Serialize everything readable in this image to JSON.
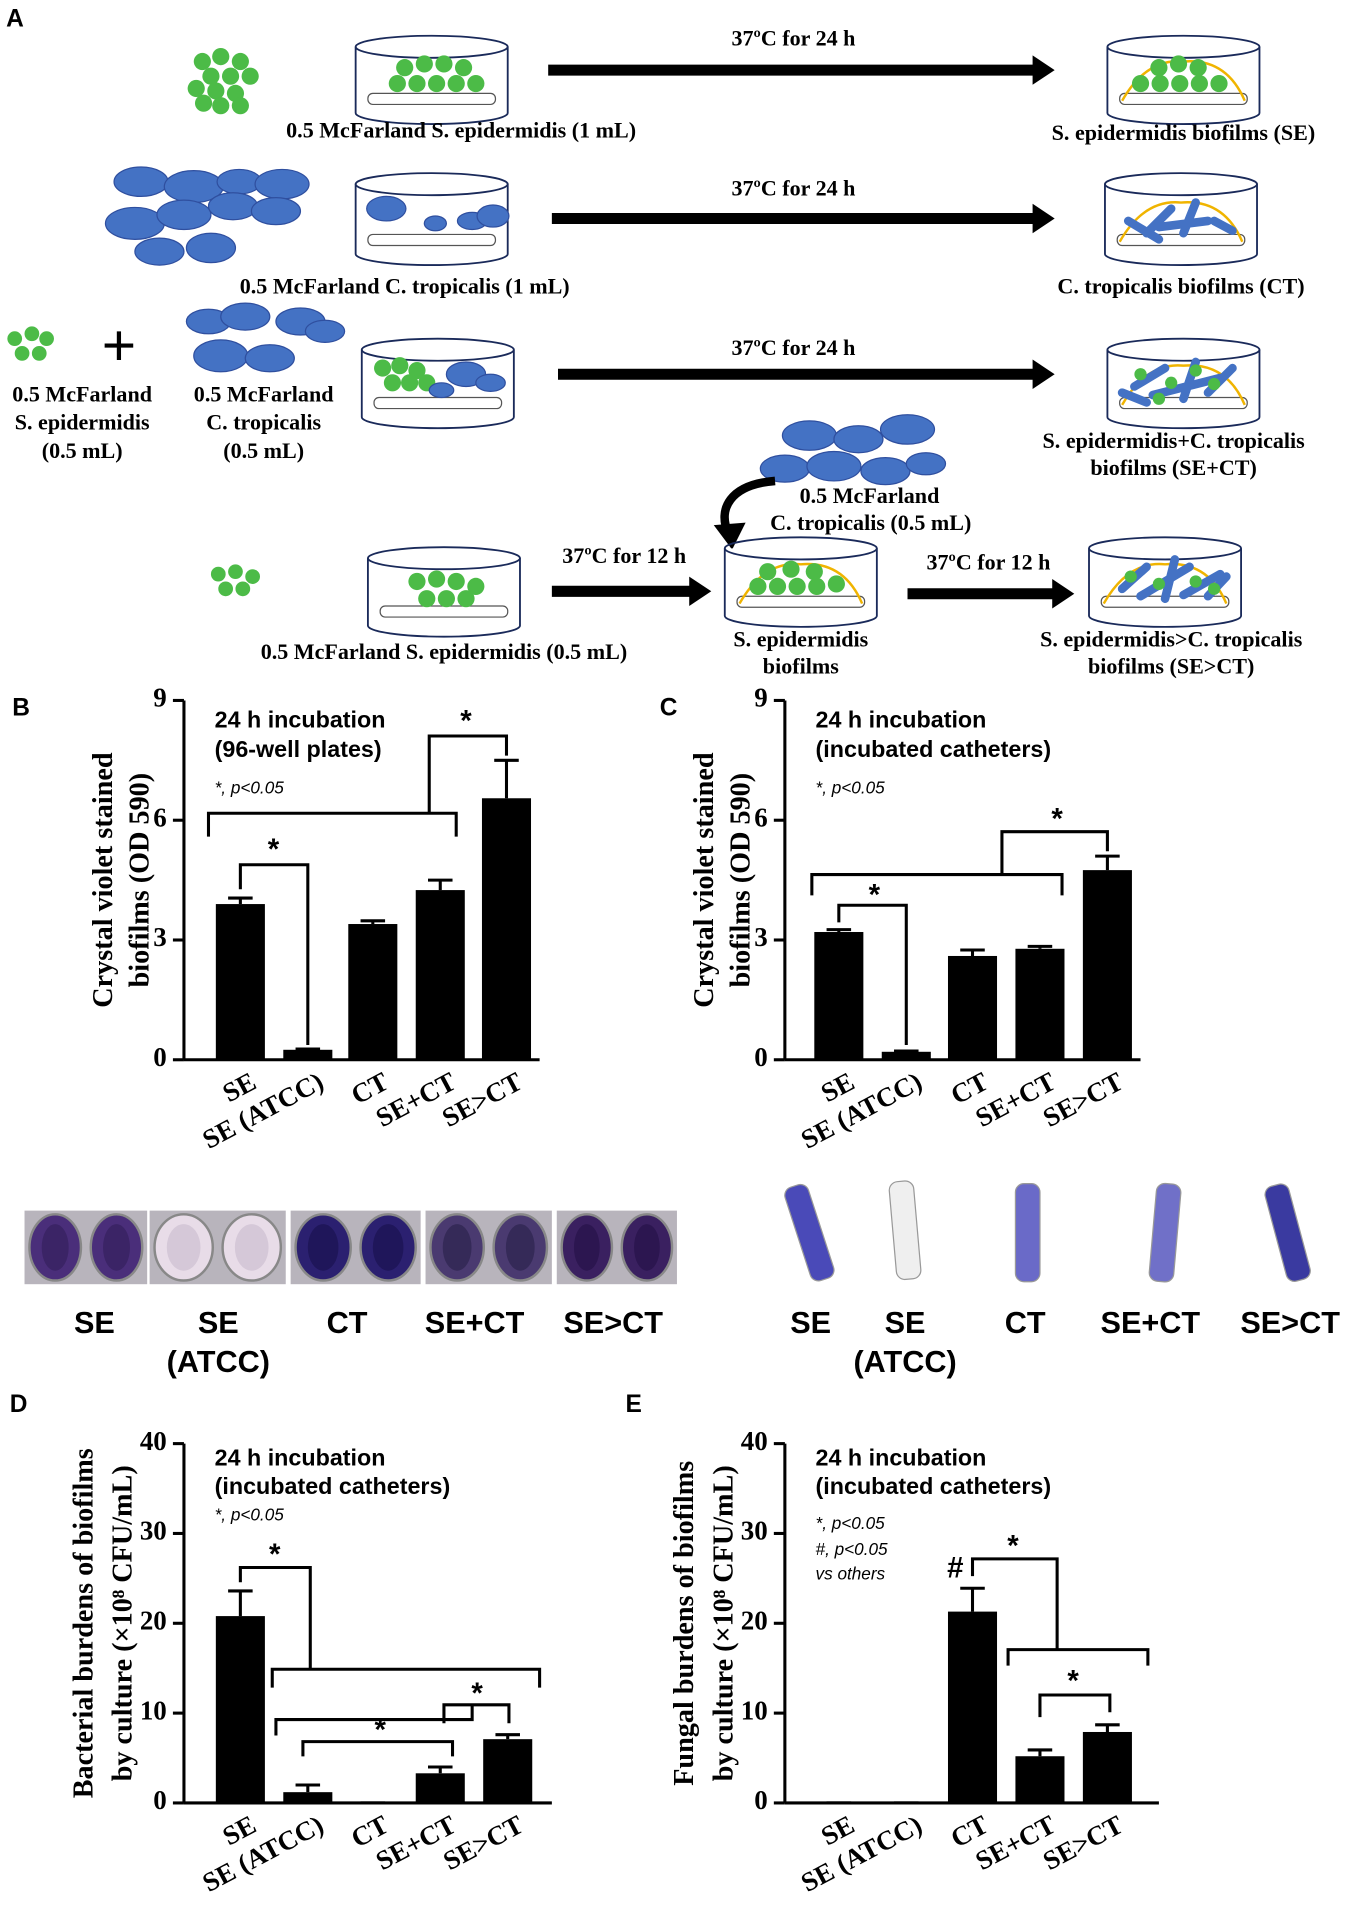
{
  "panel_labels": [
    "A",
    "B",
    "C",
    "D",
    "E"
  ],
  "diagram": {
    "row1": {
      "input": "0.5 McFarland S. epidermidis (1 mL)",
      "step": "37ºC for 24 h",
      "output": "S. epidermidis biofilms (SE)"
    },
    "row2": {
      "input": "0.5 McFarland C. tropicalis (1 mL)",
      "step": "37ºC for 24 h",
      "output": "C. tropicalis biofilms (CT)"
    },
    "row3": {
      "input_a": [
        "0.5 McFarland",
        "S. epidermidis",
        "(0.5 mL)"
      ],
      "plus": "+",
      "input_b": [
        "0.5 McFarland",
        "C. tropicalis",
        "(0.5 mL)"
      ],
      "step": "37ºC for 24 h",
      "output": [
        "S. epidermidis+C. tropicalis",
        "biofilms (SE+CT)"
      ]
    },
    "row4": {
      "input": "0.5 McFarland S. epidermidis (0.5 mL)",
      "step_1": "37ºC for 12 h",
      "intermediate": [
        "S. epidermidis",
        "biofilms"
      ],
      "addition": [
        "0.5 McFarland",
        "C. tropicalis (0.5 mL)"
      ],
      "step_2": "37ºC for 12 h",
      "output": [
        "S. epidermidis>C. tropicalis",
        "biofilms (SE>CT)"
      ]
    }
  },
  "chart_data": [
    {
      "type": "bar",
      "ylabel": [
        "Crystal violet stained",
        "biofilms (OD 590)"
      ],
      "annotation": [
        "24 h incubation",
        "(96-well plates)",
        "*, p<0.05"
      ],
      "significance": [
        "*",
        "*"
      ],
      "categories": [
        "SE",
        "SE (ATCC)",
        "CT",
        "SE+CT",
        "SE>CT"
      ],
      "values": [
        3.9,
        0.25,
        3.4,
        4.25,
        6.55
      ],
      "errors": [
        0.15,
        0.02,
        0.08,
        0.25,
        0.95
      ],
      "color": "#000000",
      "ylim": [
        0,
        9
      ],
      "yticks": [
        0,
        3,
        6,
        9
      ]
    },
    {
      "type": "bar",
      "ylabel": [
        "Crystal violet stained",
        "biofilms (OD 590)"
      ],
      "annotation": [
        "24 h incubation",
        "(incubated catheters)",
        "*, p<0.05"
      ],
      "significance": [
        "*",
        "*"
      ],
      "categories": [
        "SE",
        "SE (ATCC)",
        "CT",
        "SE+CT",
        "SE>CT"
      ],
      "values": [
        3.2,
        0.2,
        2.6,
        2.78,
        4.75
      ],
      "errors": [
        0.06,
        0.02,
        0.15,
        0.06,
        0.35
      ],
      "color": "#000000",
      "ylim": [
        0,
        9
      ],
      "yticks": [
        0,
        3,
        6,
        9
      ]
    },
    {
      "type": "bar",
      "ylabel": [
        "Bacterial burdens of biofilms",
        "by culture (×10⁸ CFU/mL)"
      ],
      "annotation": [
        "24 h incubation",
        "(incubated catheters)",
        "*, p<0.05"
      ],
      "significance": [
        "*",
        "*",
        "*"
      ],
      "categories": [
        "SE",
        "SE (ATCC)",
        "CT",
        "SE+CT",
        "SE>CT"
      ],
      "values": [
        20.8,
        1.2,
        0,
        3.3,
        7.1
      ],
      "errors": [
        2.8,
        0.8,
        0,
        0.7,
        0.5
      ],
      "color": "#000000",
      "ylim": [
        0,
        40
      ],
      "yticks": [
        0,
        10,
        20,
        30,
        40
      ]
    },
    {
      "type": "bar",
      "ylabel": [
        "Fungal burdens of biofilms",
        "by culture (×10⁸ CFU/mL)"
      ],
      "annotation": [
        "24 h incubation",
        "(incubated catheters)",
        "*, p<0.05",
        "#, p<0.05",
        "vs others"
      ],
      "significance": [
        "#",
        "*",
        "*"
      ],
      "categories": [
        "SE",
        "SE (ATCC)",
        "CT",
        "SE+CT",
        "SE>CT"
      ],
      "values": [
        0,
        0,
        21.3,
        5.2,
        7.9
      ],
      "errors": [
        0,
        0,
        2.6,
        0.7,
        0.8
      ],
      "color": "#000000",
      "ylim": [
        0,
        40
      ],
      "yticks": [
        0,
        10,
        20,
        30,
        40
      ]
    }
  ],
  "plate_photos": {
    "labels": [
      [
        "SE"
      ],
      [
        "SE",
        "(ATCC)"
      ],
      [
        "CT"
      ],
      [
        "SE+CT"
      ],
      [
        "SE>CT"
      ]
    ]
  },
  "catheter_photos": {
    "labels": [
      [
        "SE"
      ],
      [
        "SE",
        "(ATCC)"
      ],
      [
        "CT"
      ],
      [
        "SE+CT"
      ],
      [
        "SE>CT"
      ]
    ]
  }
}
